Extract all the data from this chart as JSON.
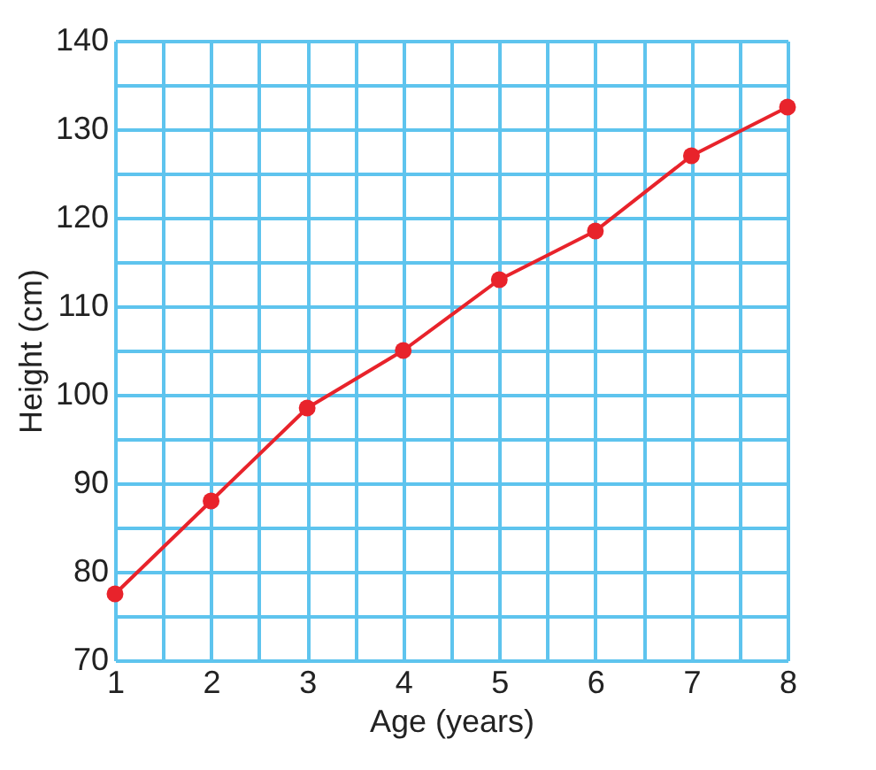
{
  "chart_data": {
    "type": "line",
    "xlabel": "Age (years)",
    "ylabel": "Height (cm)",
    "x": [
      1,
      2,
      3,
      4,
      5,
      6,
      7,
      8
    ],
    "series": [
      {
        "color": "#e8232b",
        "values": [
          77.5,
          88,
          98.5,
          105,
          113,
          118.5,
          127,
          132.5
        ]
      }
    ],
    "xlim": [
      1,
      8
    ],
    "ylim": [
      70,
      140
    ],
    "xticks": [
      1,
      {
        "value": 1.5,
        "label": null
      },
      2,
      {
        "value": 2.5,
        "label": null
      },
      3,
      {
        "value": 3.5,
        "label": null
      },
      4,
      {
        "value": 4.5,
        "label": null
      },
      5,
      {
        "value": 5.5,
        "label": null
      },
      6,
      {
        "value": 6.5,
        "label": null
      },
      7,
      {
        "value": 7.5,
        "label": null
      },
      8
    ],
    "yticks": [
      70,
      {
        "value": 75,
        "label": null
      },
      80,
      {
        "value": 85,
        "label": null
      },
      90,
      {
        "value": 95,
        "label": null
      },
      100,
      {
        "value": 105,
        "label": null
      },
      110,
      {
        "value": 115,
        "label": null
      },
      120,
      {
        "value": 125,
        "label": null
      },
      130,
      {
        "value": 135,
        "label": null
      },
      140
    ],
    "grid": true,
    "marker": "circle",
    "line_style": "solid"
  }
}
